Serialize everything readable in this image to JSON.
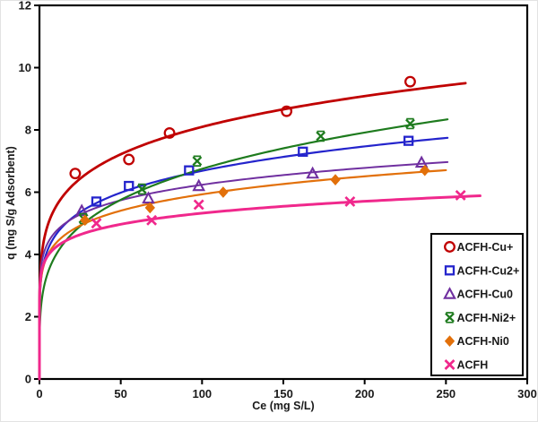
{
  "chart_data": {
    "type": "scatter",
    "title": "",
    "xlabel": "Ce (mg S/L)",
    "ylabel": "q (mg S/g Adsorbent)",
    "xlim": [
      0,
      300
    ],
    "ylim": [
      0,
      12
    ],
    "xticks": [
      0,
      50,
      100,
      150,
      200,
      250,
      300
    ],
    "yticks": [
      0,
      2,
      4,
      6,
      8,
      10,
      12
    ],
    "grid": false,
    "legend_position": "inside-bottom-right",
    "axis_color": "#000000",
    "label_color": "#1a1a1a",
    "series": [
      {
        "name": "ACFH-Cu+",
        "color": "#c00000",
        "marker": "circle",
        "line_width": 2.8,
        "points": [
          [
            22,
            6.6
          ],
          [
            55,
            7.05
          ],
          [
            80,
            7.9
          ],
          [
            152,
            8.6
          ],
          [
            228,
            9.55
          ]
        ],
        "trend": {
          "model": "freundlich_power",
          "a": 3.77,
          "b": 0.166,
          "xmax": 262
        }
      },
      {
        "name": "ACFH-Cu2+",
        "color": "#2424cc",
        "marker": "square",
        "line_width": 2.2,
        "points": [
          [
            35,
            5.7
          ],
          [
            55,
            6.2
          ],
          [
            92,
            6.7
          ],
          [
            162,
            7.3
          ],
          [
            227,
            7.65
          ]
        ],
        "trend": {
          "model": "freundlich_power",
          "a": 3.2,
          "b": 0.16,
          "xmax": 251
        }
      },
      {
        "name": "ACFH-Cu0",
        "color": "#7030a0",
        "marker": "triangle",
        "line_width": 2.0,
        "points": [
          [
            26,
            5.4
          ],
          [
            67,
            5.8
          ],
          [
            98,
            6.2
          ],
          [
            168,
            6.6
          ],
          [
            235,
            6.95
          ]
        ],
        "trend": {
          "model": "freundlich_power",
          "a": 3.59,
          "b": 0.12,
          "xmax": 251
        }
      },
      {
        "name": "ACFH-Ni2+",
        "color": "#1e7b1e",
        "marker": "xstar",
        "line_width": 2.2,
        "points": [
          [
            27,
            5.15
          ],
          [
            63,
            6.1
          ],
          [
            97,
            7.0
          ],
          [
            173,
            7.8
          ],
          [
            228,
            8.2
          ]
        ],
        "trend": {
          "model": "freundlich_power",
          "a": 2.34,
          "b": 0.23,
          "xmax": 251
        }
      },
      {
        "name": "ACFH-Ni0",
        "color": "#e2700a",
        "marker": "diamond",
        "line_width": 2.2,
        "points": [
          [
            28,
            5.1
          ],
          [
            68,
            5.5
          ],
          [
            113,
            6.0
          ],
          [
            182,
            6.4
          ],
          [
            237,
            6.7
          ]
        ],
        "trend": {
          "model": "freundlich_power",
          "a": 3.2,
          "b": 0.134,
          "xmax": 250
        }
      },
      {
        "name": "ACFH",
        "color": "#f0288c",
        "marker": "x",
        "line_width": 3.0,
        "points": [
          [
            35,
            5.0
          ],
          [
            69,
            5.1
          ],
          [
            98,
            5.6
          ],
          [
            191,
            5.7
          ],
          [
            259,
            5.9
          ]
        ],
        "trend": {
          "model": "freundlich_power",
          "a": 3.36,
          "b": 0.1,
          "xmax": 271
        }
      }
    ]
  }
}
